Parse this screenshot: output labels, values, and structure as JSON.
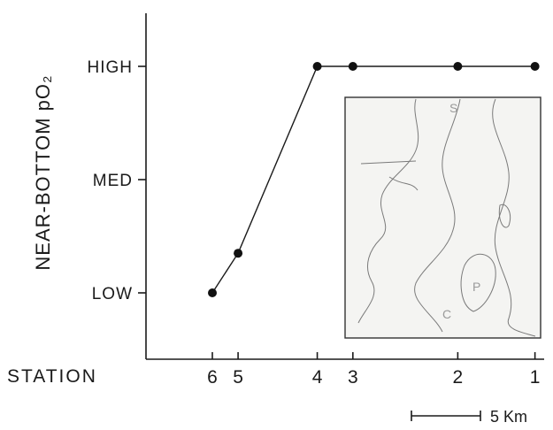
{
  "chart_data": {
    "type": "line",
    "ylabel": "NEAR-BOTTOM  pO₂",
    "xlabel": "STATION",
    "y_levels": [
      "LOW",
      "MED",
      "HIGH"
    ],
    "x_tick_labels": [
      "6",
      "5",
      "4",
      "3",
      "2",
      "1"
    ],
    "points": [
      {
        "station": "6",
        "x_km": 0.0,
        "level": "LOW"
      },
      {
        "station": "5",
        "x_km": 1.3,
        "level": "LOW-MED"
      },
      {
        "station": "4",
        "x_km": 5.3,
        "level": "HIGH"
      },
      {
        "station": "3",
        "x_km": 7.1,
        "level": "HIGH"
      },
      {
        "station": "2",
        "x_km": 12.4,
        "level": "HIGH"
      },
      {
        "station": "1",
        "x_km": 16.3,
        "level": "HIGH"
      }
    ],
    "level_values": {
      "LOW": 0,
      "LOW-MED": 0.35,
      "MED": 1,
      "HIGH": 2
    },
    "scale_bar": {
      "label": "5 Km",
      "km": 5
    },
    "grid": false,
    "legend": "none",
    "inset_map": {
      "labels": [
        "S",
        "P",
        "C"
      ]
    }
  }
}
